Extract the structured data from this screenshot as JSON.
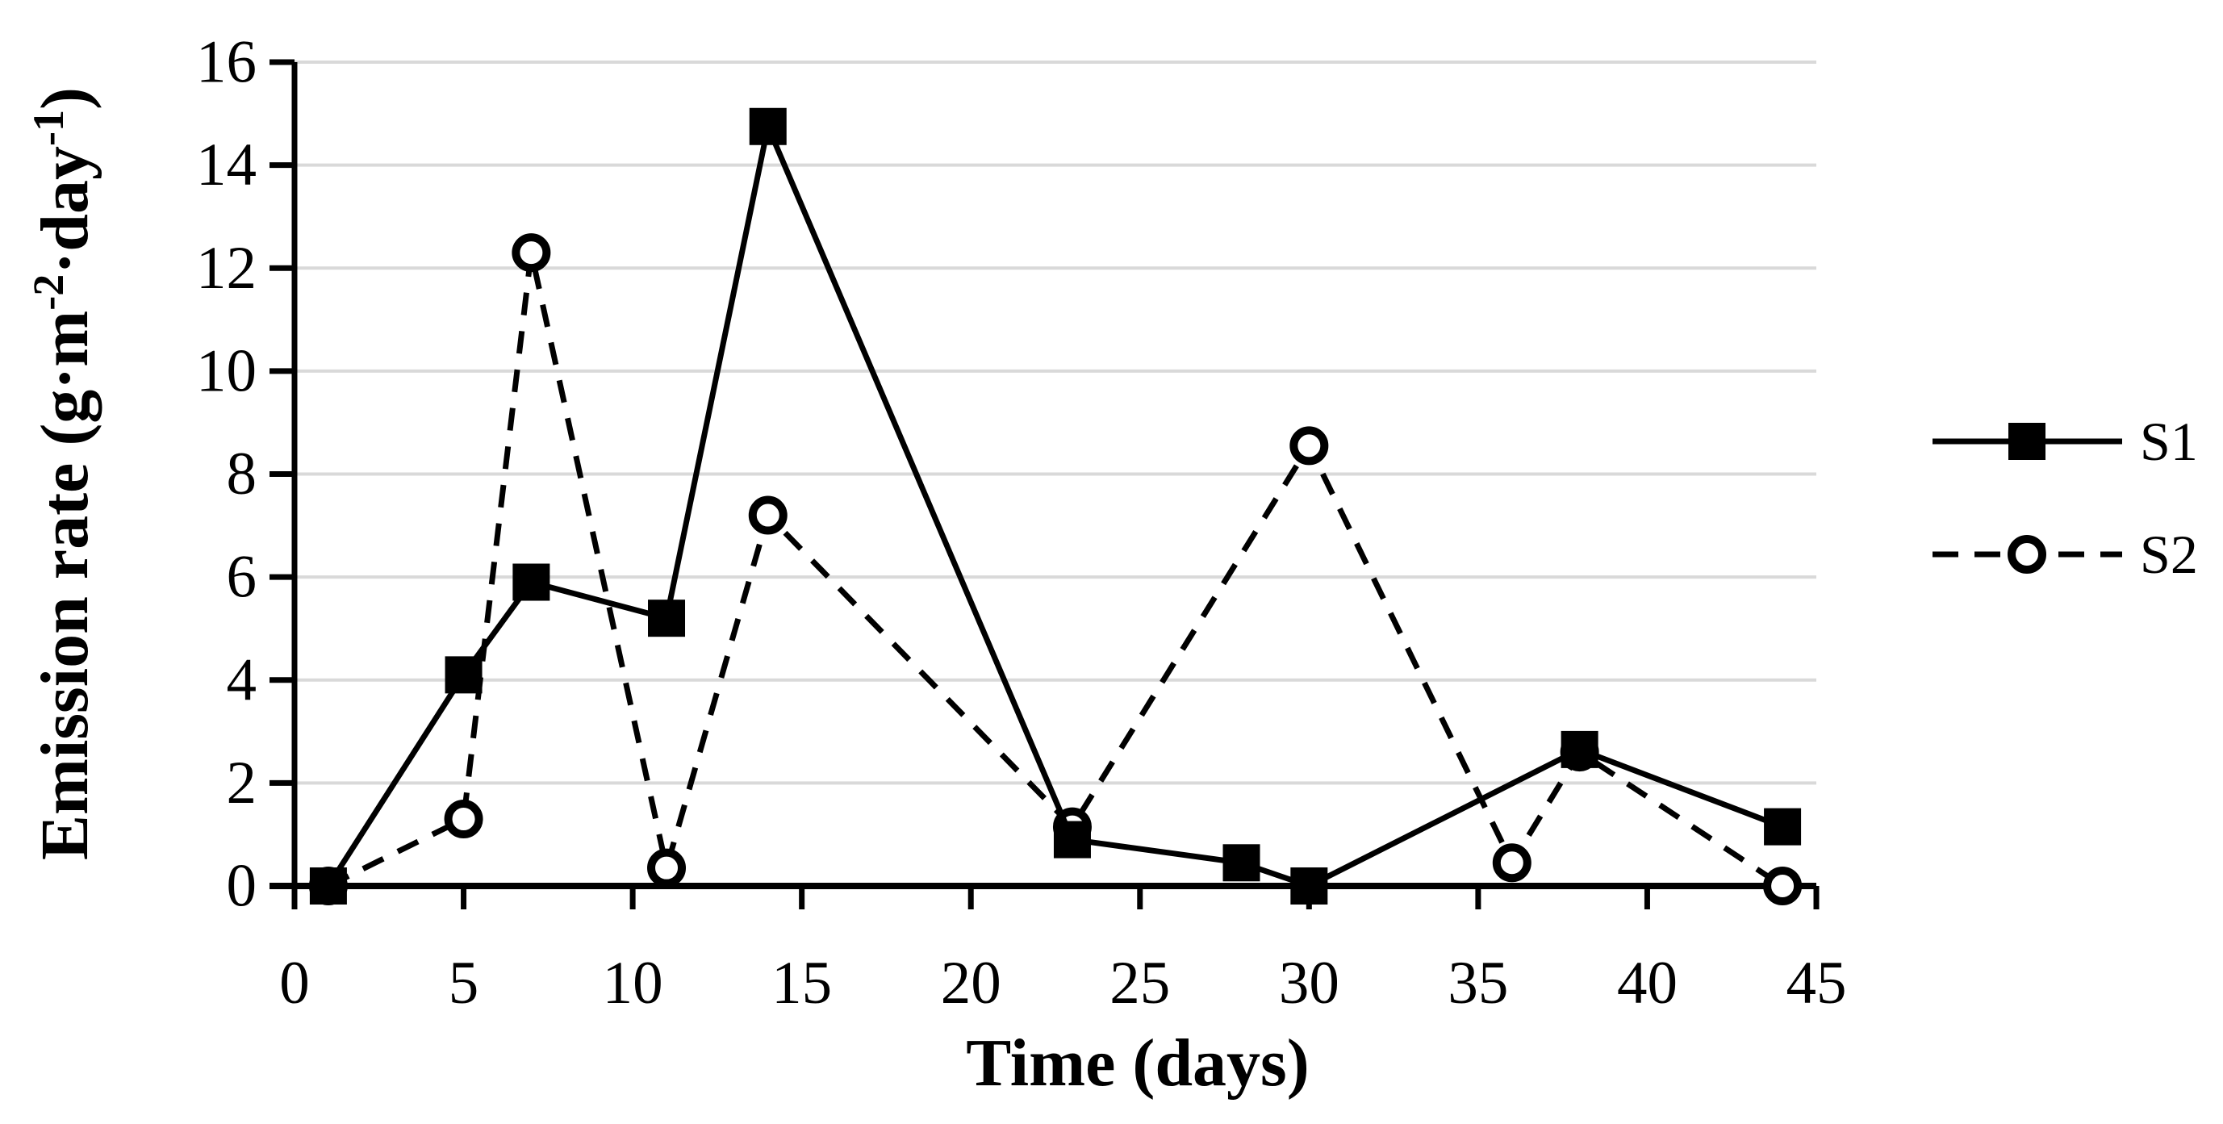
{
  "chart_data": {
    "type": "line",
    "title": "",
    "xlabel": "Time (days)",
    "ylabel": "Emission rate (g·m⁻²·day⁻¹)",
    "ylabel_parts": {
      "pre": "Emission rate (g·m",
      "sup1": "-2",
      "mid": "·day",
      "sup2": "-1",
      "post": ")"
    },
    "xlim": [
      0,
      45
    ],
    "ylim": [
      0,
      16
    ],
    "x_ticks": [
      0,
      5,
      10,
      15,
      20,
      25,
      30,
      35,
      40,
      45
    ],
    "y_ticks": [
      0,
      2,
      4,
      6,
      8,
      10,
      12,
      14,
      16
    ],
    "grid": "horizontal",
    "legend_position": "right",
    "series": [
      {
        "name": "S1",
        "line": "solid",
        "marker": "filled-square",
        "x": [
          1,
          5,
          7,
          11,
          14,
          23,
          28,
          30,
          38,
          44
        ],
        "y": [
          0,
          4.1,
          5.9,
          5.2,
          14.75,
          0.9,
          0.45,
          0,
          2.65,
          1.15
        ]
      },
      {
        "name": "S2",
        "line": "dashed",
        "marker": "open-circle",
        "x": [
          1,
          5,
          7,
          11,
          14,
          23,
          30,
          36,
          38,
          44
        ],
        "y": [
          0,
          1.3,
          12.3,
          0.35,
          7.2,
          1.15,
          8.55,
          0.45,
          2.6,
          0
        ]
      }
    ],
    "colors": {
      "series": "#000000",
      "grid": "#d9d9d9",
      "background": "#ffffff"
    }
  }
}
